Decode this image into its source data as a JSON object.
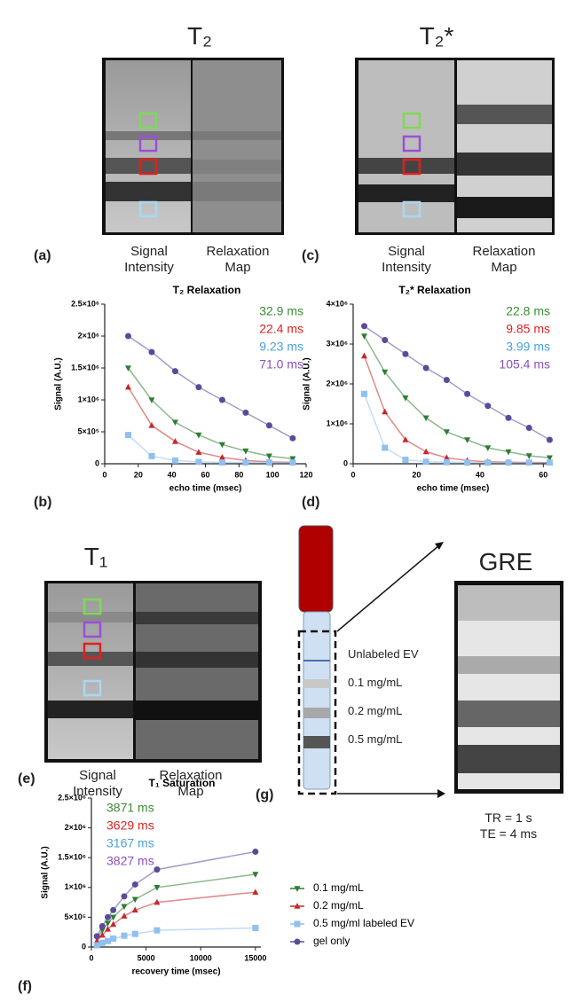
{
  "panels": {
    "t2": {
      "header": "T₂",
      "letter": "(a)",
      "captions": [
        "Signal Intensity",
        "Relaxation Map"
      ]
    },
    "t2star": {
      "header": "T₂*",
      "letter": "(c)",
      "captions": [
        "Signal Intensity",
        "Relaxation Map"
      ]
    },
    "t1": {
      "header": "T₁",
      "letter": "(e)",
      "captions": [
        "Signal Intensity",
        "Relaxation Map"
      ]
    },
    "b": {
      "letter": "(b)"
    },
    "d": {
      "letter": "(d)"
    },
    "f": {
      "letter": "(f)"
    },
    "g": {
      "letter": "(g)",
      "tube_labels": [
        "Unlabeled EV",
        "0.1 mg/mL",
        "0.2 mg/mL",
        "0.5 mg/mL"
      ]
    },
    "gre": {
      "header": "GRE",
      "params": [
        "TR = 1 s",
        "TE = 4 ms"
      ]
    }
  },
  "chart_data": [
    {
      "type": "scatter",
      "title": "T₂ Relaxation",
      "x_label": "echo time (msec)",
      "y_label": "Signal (A.U.)",
      "x": [
        14,
        28,
        42,
        56,
        70,
        84,
        98,
        112
      ],
      "xlim": [
        0,
        120
      ],
      "xticks": [
        0,
        20,
        40,
        60,
        80,
        100,
        120
      ],
      "ylim": [
        0,
        2500000
      ],
      "yticks": [
        0,
        {
          "value": 500000,
          "label": "5×10⁵"
        },
        {
          "value": 1000000,
          "label": "1×10⁶"
        },
        {
          "value": 1500000,
          "label": "1.5×10⁶"
        },
        {
          "value": 2000000,
          "label": "2×10⁶"
        },
        {
          "value": 2500000,
          "label": "2.5×10⁶"
        }
      ],
      "annotations": [
        {
          "text": "32.9 ms",
          "color": "#3c8c34"
        },
        {
          "text": "22.4 ms",
          "color": "#e02020"
        },
        {
          "text": "9.23 ms",
          "color": "#4a9fe0"
        },
        {
          "text": "71.0 ms",
          "color": "#8a4fc0"
        }
      ],
      "series": [
        {
          "color": "#2e7d32",
          "marker": "triangle-down",
          "values": [
            1500000,
            1000000,
            650000,
            450000,
            300000,
            200000,
            120000,
            80000
          ]
        },
        {
          "color": "#c62828",
          "marker": "triangle-up",
          "values": [
            1200000,
            600000,
            350000,
            180000,
            100000,
            50000,
            30000,
            20000
          ]
        },
        {
          "color": "#90bff0",
          "marker": "square",
          "values": [
            450000,
            120000,
            50000,
            30000,
            20000,
            20000,
            20000,
            20000
          ]
        },
        {
          "color": "#5b4a9a",
          "marker": "circle",
          "values": [
            2000000,
            1750000,
            1450000,
            1200000,
            1000000,
            800000,
            600000,
            400000
          ]
        }
      ]
    },
    {
      "type": "scatter",
      "title": "T₂* Relaxation",
      "x_label": "echo time (msec)",
      "y_label": "Signal (A.U.)",
      "x": [
        3.5,
        10,
        16.5,
        23,
        29.5,
        36,
        42.5,
        49,
        55.5,
        62
      ],
      "xlim": [
        0,
        63
      ],
      "xticks": [
        0,
        20,
        40,
        60
      ],
      "ylim": [
        0,
        4000000
      ],
      "yticks": [
        0,
        {
          "value": 1000000,
          "label": "1×10⁶"
        },
        {
          "value": 2000000,
          "label": "2×10⁶"
        },
        {
          "value": 3000000,
          "label": "3×10⁶"
        },
        {
          "value": 4000000,
          "label": "4×10⁶"
        }
      ],
      "annotations": [
        {
          "text": "22.8 ms",
          "color": "#3c8c34"
        },
        {
          "text": "9.85 ms",
          "color": "#e02020"
        },
        {
          "text": "3.99 ms",
          "color": "#4a9fe0"
        },
        {
          "text": "105.4 ms",
          "color": "#8a4fc0"
        }
      ],
      "series": [
        {
          "color": "#2e7d32",
          "marker": "triangle-down",
          "values": [
            3200000,
            2300000,
            1650000,
            1150000,
            800000,
            600000,
            400000,
            300000,
            200000,
            150000
          ]
        },
        {
          "color": "#c62828",
          "marker": "triangle-up",
          "values": [
            2700000,
            1300000,
            600000,
            300000,
            150000,
            80000,
            50000,
            40000,
            30000,
            30000
          ]
        },
        {
          "color": "#90bff0",
          "marker": "square",
          "values": [
            1750000,
            400000,
            100000,
            50000,
            40000,
            30000,
            30000,
            30000,
            30000,
            30000
          ]
        },
        {
          "color": "#5b4a9a",
          "marker": "circle",
          "values": [
            3450000,
            3100000,
            2750000,
            2400000,
            2100000,
            1750000,
            1450000,
            1150000,
            900000,
            600000
          ]
        }
      ]
    },
    {
      "type": "scatter",
      "title": "T₁ Saturation",
      "x_label": "recovery time (msec)",
      "y_label": "Signal (A.U.)",
      "x": [
        500,
        1000,
        1500,
        2000,
        3000,
        4000,
        6000,
        15000
      ],
      "xlim": [
        0,
        15500
      ],
      "xticks": [
        0,
        5000,
        10000,
        15000
      ],
      "ylim": [
        0,
        2500000
      ],
      "yticks": [
        0,
        {
          "value": 500000,
          "label": "5×10⁵"
        },
        {
          "value": 1000000,
          "label": "1×10⁶"
        },
        {
          "value": 1500000,
          "label": "1.5×10⁶"
        },
        {
          "value": 2000000,
          "label": "2×10⁶"
        },
        {
          "value": 2500000,
          "label": "2.5×10⁶"
        }
      ],
      "annotations": [
        {
          "text": "3871 ms",
          "color": "#3c8c34"
        },
        {
          "text": "3629 ms",
          "color": "#e02020"
        },
        {
          "text": "3167 ms",
          "color": "#4a9fe0"
        },
        {
          "text": "3827 ms",
          "color": "#8a4fc0"
        }
      ],
      "series": [
        {
          "name": "0.1 mg/mL",
          "color": "#2e7d32",
          "marker": "triangle-down",
          "values": [
            150000,
            280000,
            400000,
            500000,
            680000,
            800000,
            1000000,
            1220000
          ]
        },
        {
          "name": "0.2 mg/mL",
          "color": "#c62828",
          "marker": "triangle-up",
          "values": [
            100000,
            200000,
            300000,
            380000,
            520000,
            620000,
            750000,
            920000
          ]
        },
        {
          "name": "0.5 mg/ml labeled EV",
          "color": "#90bff0",
          "marker": "square",
          "values": [
            30000,
            70000,
            100000,
            140000,
            190000,
            220000,
            280000,
            320000
          ]
        },
        {
          "name": "gel only",
          "color": "#5b4a9a",
          "marker": "circle",
          "values": [
            180000,
            350000,
            500000,
            620000,
            850000,
            1050000,
            1300000,
            1600000
          ]
        }
      ]
    }
  ]
}
